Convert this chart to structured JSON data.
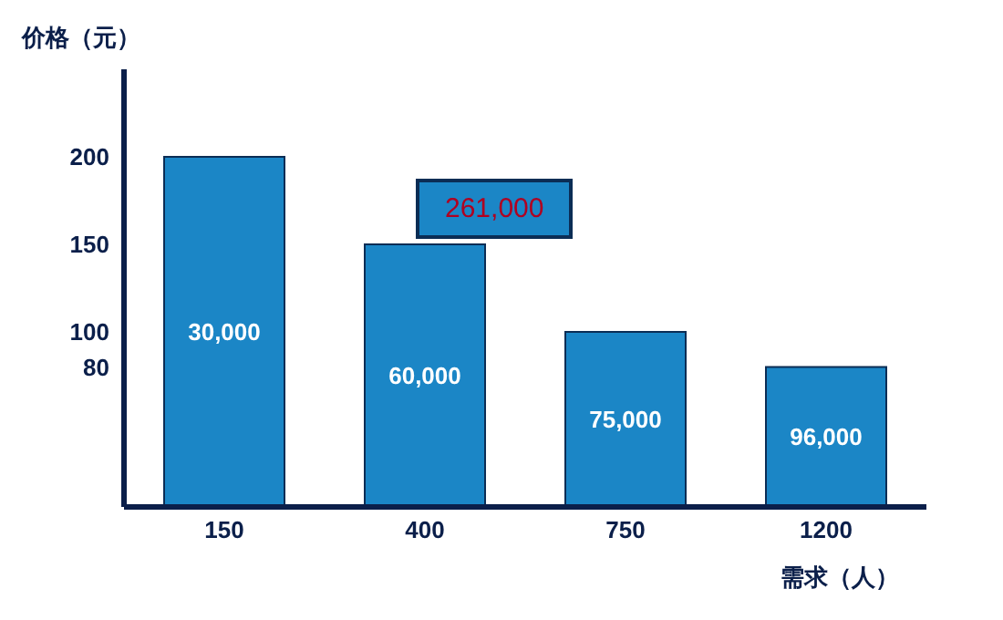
{
  "chart_data": {
    "type": "bar",
    "ylabel": "价格（元）",
    "xlabel": "需求（人）",
    "categories": [
      "150",
      "400",
      "750",
      "1200"
    ],
    "series": [
      {
        "color": "#1b86c6",
        "values": [
          200,
          150,
          100,
          80
        ]
      }
    ],
    "ylim": [
      0,
      250
    ],
    "yticks": [
      80,
      100,
      150,
      200
    ],
    "grid": false,
    "legend": false,
    "annotations": [
      "261,000",
      "30,000",
      "60,000",
      "75,000",
      "96,000"
    ]
  }
}
